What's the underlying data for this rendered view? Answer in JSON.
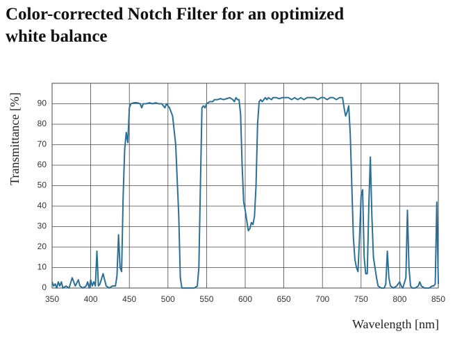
{
  "chart_data": {
    "type": "line",
    "title": [
      "Color-corrected Notch Filter for an optimized",
      "white balance"
    ],
    "x_label": "Wavelength [nm]",
    "y_label": "Transmittance [%]",
    "xlim": [
      350,
      850
    ],
    "xticks": [
      350,
      400,
      450,
      500,
      550,
      600,
      650,
      700,
      750,
      800,
      850
    ],
    "ylim": [
      0,
      100
    ],
    "yticks": [
      0,
      10,
      20,
      30,
      40,
      50,
      60,
      70,
      80,
      90
    ],
    "grid": true,
    "color": "#2a6f96",
    "x": [
      350,
      352,
      354,
      356,
      358,
      360,
      362,
      364,
      368,
      372,
      376,
      378,
      380,
      384,
      386,
      390,
      394,
      396,
      398,
      400,
      402,
      404,
      406,
      408,
      410,
      412,
      416,
      420,
      424,
      428,
      432,
      434,
      436,
      438,
      440,
      442,
      444,
      446,
      448,
      450,
      452,
      456,
      460,
      464,
      466,
      468,
      472,
      476,
      480,
      484,
      488,
      492,
      494,
      496,
      498,
      500,
      502,
      506,
      510,
      514,
      516,
      518,
      522,
      530,
      534,
      538,
      540,
      542,
      544,
      546,
      548,
      550,
      554,
      558,
      560,
      564,
      568,
      572,
      576,
      580,
      584,
      586,
      588,
      590,
      592,
      594,
      596,
      598,
      600,
      602,
      604,
      606,
      608,
      610,
      612,
      614,
      616,
      618,
      620,
      622,
      624,
      626,
      628,
      630,
      634,
      636,
      640,
      644,
      648,
      652,
      656,
      660,
      664,
      668,
      672,
      676,
      680,
      684,
      690,
      694,
      698,
      702,
      706,
      710,
      714,
      718,
      722,
      726,
      728,
      730,
      732,
      734,
      736,
      738,
      740,
      742,
      744,
      746,
      748,
      750,
      752,
      754,
      756,
      758,
      760,
      762,
      764,
      766,
      768,
      770,
      772,
      776,
      780,
      782,
      784,
      786,
      788,
      792,
      796,
      800,
      802,
      804,
      808,
      810,
      812,
      814,
      816,
      820,
      824,
      826,
      828,
      832,
      838,
      842,
      844,
      846,
      848,
      850
    ],
    "values": [
      3,
      1,
      2,
      0,
      3,
      1,
      3,
      0,
      1,
      0,
      5,
      3,
      1,
      4,
      1,
      0,
      1,
      3,
      0,
      4,
      1,
      3,
      1,
      18,
      1,
      2,
      7,
      1,
      0,
      1,
      1,
      6,
      26,
      10,
      8,
      45,
      68,
      76,
      71,
      88,
      90,
      90.5,
      90.5,
      90,
      88,
      90,
      90,
      90.5,
      90,
      90.5,
      90,
      90,
      89,
      88,
      90,
      89,
      88,
      84,
      70,
      35,
      5,
      0,
      0,
      0,
      0,
      1,
      10,
      50,
      88,
      89,
      88,
      90,
      91,
      91,
      92,
      92,
      92.5,
      92,
      92.5,
      93,
      92,
      91,
      93,
      92,
      92,
      85,
      60,
      42,
      38,
      33,
      28,
      29,
      32,
      31,
      35,
      50,
      80,
      91,
      92,
      91,
      92,
      93,
      92,
      93,
      92,
      93,
      93,
      92.5,
      93,
      93,
      93,
      92,
      93,
      92,
      93,
      92,
      93,
      93,
      93,
      92,
      93,
      93,
      92,
      93,
      93,
      92,
      93,
      93,
      88,
      84,
      86,
      89,
      75,
      50,
      25,
      14,
      10,
      8,
      25,
      45,
      48,
      15,
      7,
      7,
      40,
      64,
      35,
      15,
      10,
      5,
      1,
      0,
      0,
      2,
      18,
      5,
      1,
      0,
      1,
      3,
      1,
      0,
      5,
      38,
      10,
      1,
      0,
      0,
      1,
      3,
      1,
      0,
      0,
      1,
      1,
      2,
      42,
      2
    ]
  }
}
